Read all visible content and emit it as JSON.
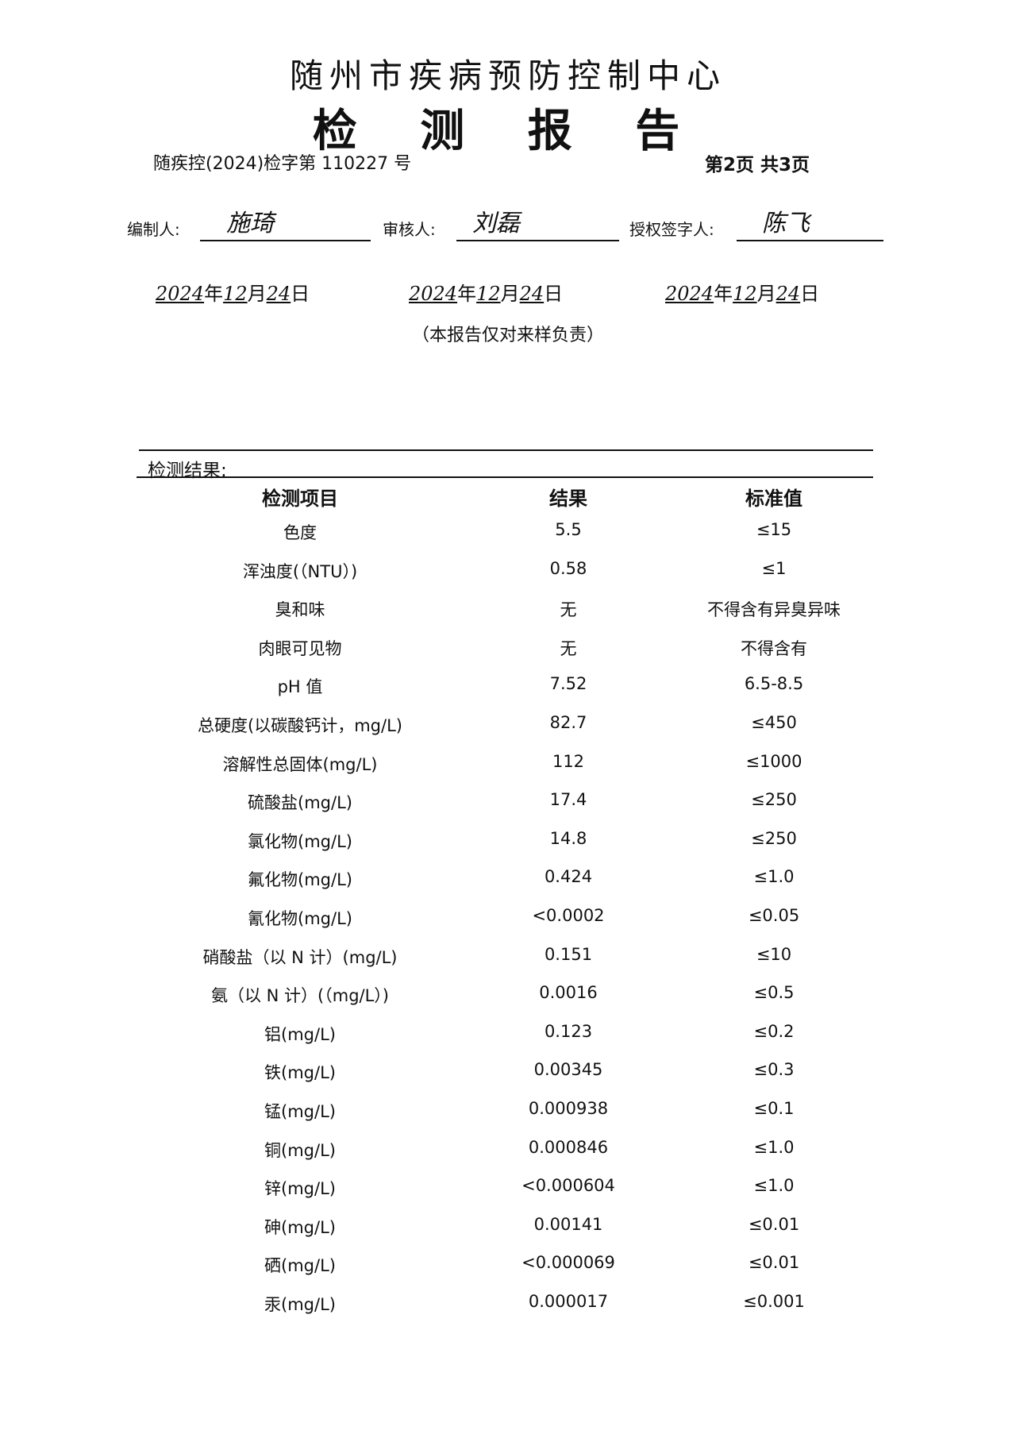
{
  "header": {
    "organization": "随州市疾病预防控制中心",
    "title": "检 测 报 告",
    "document_number": "随疾控(2024)检字第 110227 号",
    "page_info": "第2页 共3页"
  },
  "signatures": [
    {
      "label": "编制人:",
      "signature": "施琦",
      "date": {
        "year": "2024",
        "month": "12",
        "day": "24"
      }
    },
    {
      "label": "审核人:",
      "signature": "刘磊",
      "date": {
        "year": "2024",
        "month": "12",
        "day": "24"
      }
    },
    {
      "label": "授权签字人:",
      "signature": "陈飞",
      "date": {
        "year": "2024",
        "month": "12",
        "day": "24"
      }
    }
  ],
  "date_units": {
    "year": "年",
    "month": "月",
    "day": "日"
  },
  "note": "（本报告仅对来样负责）",
  "results": {
    "section_label": "检测结果:",
    "columns": [
      "检测项目",
      "结果",
      "标准值"
    ],
    "rows": [
      [
        "色度",
        "5.5",
        "≤15"
      ],
      [
        "浑浊度(（NTU）)",
        "0.58",
        "≤1"
      ],
      [
        "臭和味",
        "无",
        "不得含有异臭异味"
      ],
      [
        "肉眼可见物",
        "无",
        "不得含有"
      ],
      [
        "pH 值",
        "7.52",
        "6.5-8.5"
      ],
      [
        "总硬度(以碳酸钙计，mg/L)",
        "82.7",
        "≤450"
      ],
      [
        "溶解性总固体(mg/L)",
        "112",
        "≤1000"
      ],
      [
        "硫酸盐(mg/L)",
        "17.4",
        "≤250"
      ],
      [
        "氯化物(mg/L)",
        "14.8",
        "≤250"
      ],
      [
        "氟化物(mg/L)",
        "0.424",
        "≤1.0"
      ],
      [
        "氰化物(mg/L)",
        "<0.0002",
        "≤0.05"
      ],
      [
        "硝酸盐（以 N 计）(mg/L)",
        "0.151",
        "≤10"
      ],
      [
        "氨（以 N 计）(（mg/L）)",
        "0.0016",
        "≤0.5"
      ],
      [
        "铝(mg/L)",
        "0.123",
        "≤0.2"
      ],
      [
        "铁(mg/L)",
        "0.00345",
        "≤0.3"
      ],
      [
        "锰(mg/L)",
        "0.000938",
        "≤0.1"
      ],
      [
        "铜(mg/L)",
        "0.000846",
        "≤1.0"
      ],
      [
        "锌(mg/L)",
        "<0.000604",
        "≤1.0"
      ],
      [
        "砷(mg/L)",
        "0.00141",
        "≤0.01"
      ],
      [
        "硒(mg/L)",
        "<0.000069",
        "≤0.01"
      ],
      [
        "汞(mg/L)",
        "0.000017",
        "≤0.001"
      ]
    ]
  }
}
